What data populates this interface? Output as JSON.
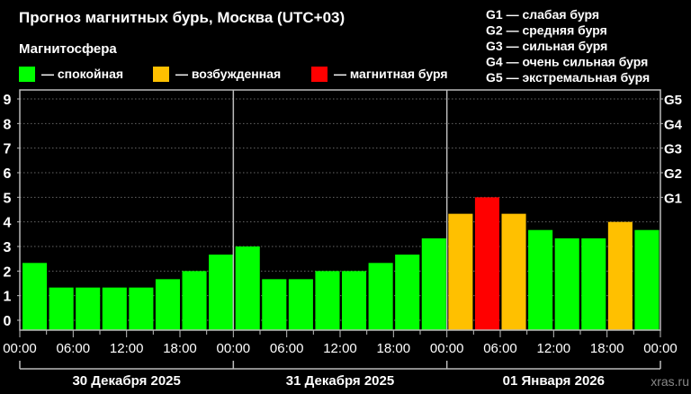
{
  "chart_data": {
    "type": "bar",
    "title": "Прогноз магнитных бурь, Москва (UTC+03)",
    "legend_title": "Магнитосфера",
    "legend": [
      {
        "label": "— спокойная",
        "color": "#00ff00"
      },
      {
        "label": "— возбужденная",
        "color": "#ffc000"
      },
      {
        "label": "— магнитная буря",
        "color": "#ff0000"
      }
    ],
    "storm_levels": [
      {
        "label": "G1 — слабая буря"
      },
      {
        "label": "G2 — средняя буря"
      },
      {
        "label": "G3 — сильная буря"
      },
      {
        "label": "G4 — очень сильная буря"
      },
      {
        "label": "G5 — экстремальная буря"
      }
    ],
    "ylim": [
      0,
      9
    ],
    "y_ticks": [
      "0",
      "1",
      "2",
      "3",
      "4",
      "5",
      "6",
      "7",
      "8",
      "9"
    ],
    "right_ticks": [
      {
        "value": 5,
        "label": "G1"
      },
      {
        "value": 6,
        "label": "G2"
      },
      {
        "value": 7,
        "label": "G3"
      },
      {
        "value": 8,
        "label": "G4"
      },
      {
        "value": 9,
        "label": "G5"
      }
    ],
    "grid": true,
    "x_tick_labels": [
      "00:00",
      "06:00",
      "12:00",
      "18:00",
      "00:00",
      "06:00",
      "12:00",
      "18:00",
      "00:00",
      "06:00",
      "12:00",
      "18:00",
      "00:00"
    ],
    "days": [
      "30 Декабря 2025",
      "31 Декабря 2025",
      "01 Января 2026"
    ],
    "values": [
      2.33,
      1.33,
      1.33,
      1.33,
      1.33,
      1.67,
      2.0,
      2.67,
      3.0,
      1.67,
      1.67,
      2.0,
      2.0,
      2.33,
      2.67,
      3.33,
      4.33,
      5.0,
      4.33,
      3.67,
      3.33,
      3.33,
      4.0,
      3.67
    ],
    "colors": {
      "quiet": "#00ff00",
      "active": "#ffc000",
      "storm": "#ff0000",
      "axis": "#bbbbbb",
      "watermark": "#888888"
    },
    "watermark": "xras.ru"
  }
}
